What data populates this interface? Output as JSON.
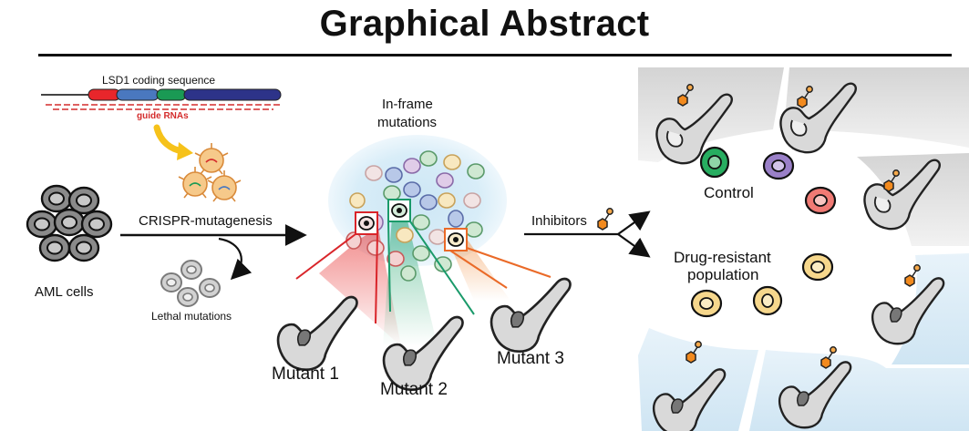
{
  "title": "Graphical Abstract",
  "labels": {
    "coding_sequence": "LSD1 coding sequence",
    "guide_rnas": "guide RNAs",
    "in_frame_line1": "In-frame",
    "in_frame_line2": "mutations",
    "crispr": "CRISPR-mutagenesis",
    "aml": "AML cells",
    "lethal": "Lethal mutations",
    "inhibitors": "Inhibitors",
    "control": "Control",
    "resistant_line1": "Drug-resistant",
    "resistant_line2": "population",
    "mutant1": "Mutant 1",
    "mutant2": "Mutant 2",
    "mutant3": "Mutant 3"
  },
  "colors": {
    "exon_red": "#e8262b",
    "exon_blue": "#4a78bf",
    "exon_green": "#1a9a54",
    "exon_navy": "#2d3389",
    "guide_red": "#d42b2b",
    "mutant1": "#d9252a",
    "mutant2": "#1a9a6a",
    "mutant3": "#ea6a28",
    "inhibitor": "#f28a1e",
    "control_green": "#27ad60",
    "control_purple": "#9a80c8",
    "control_red": "#f07a74",
    "resistant_yellow": "#f6d78c"
  }
}
